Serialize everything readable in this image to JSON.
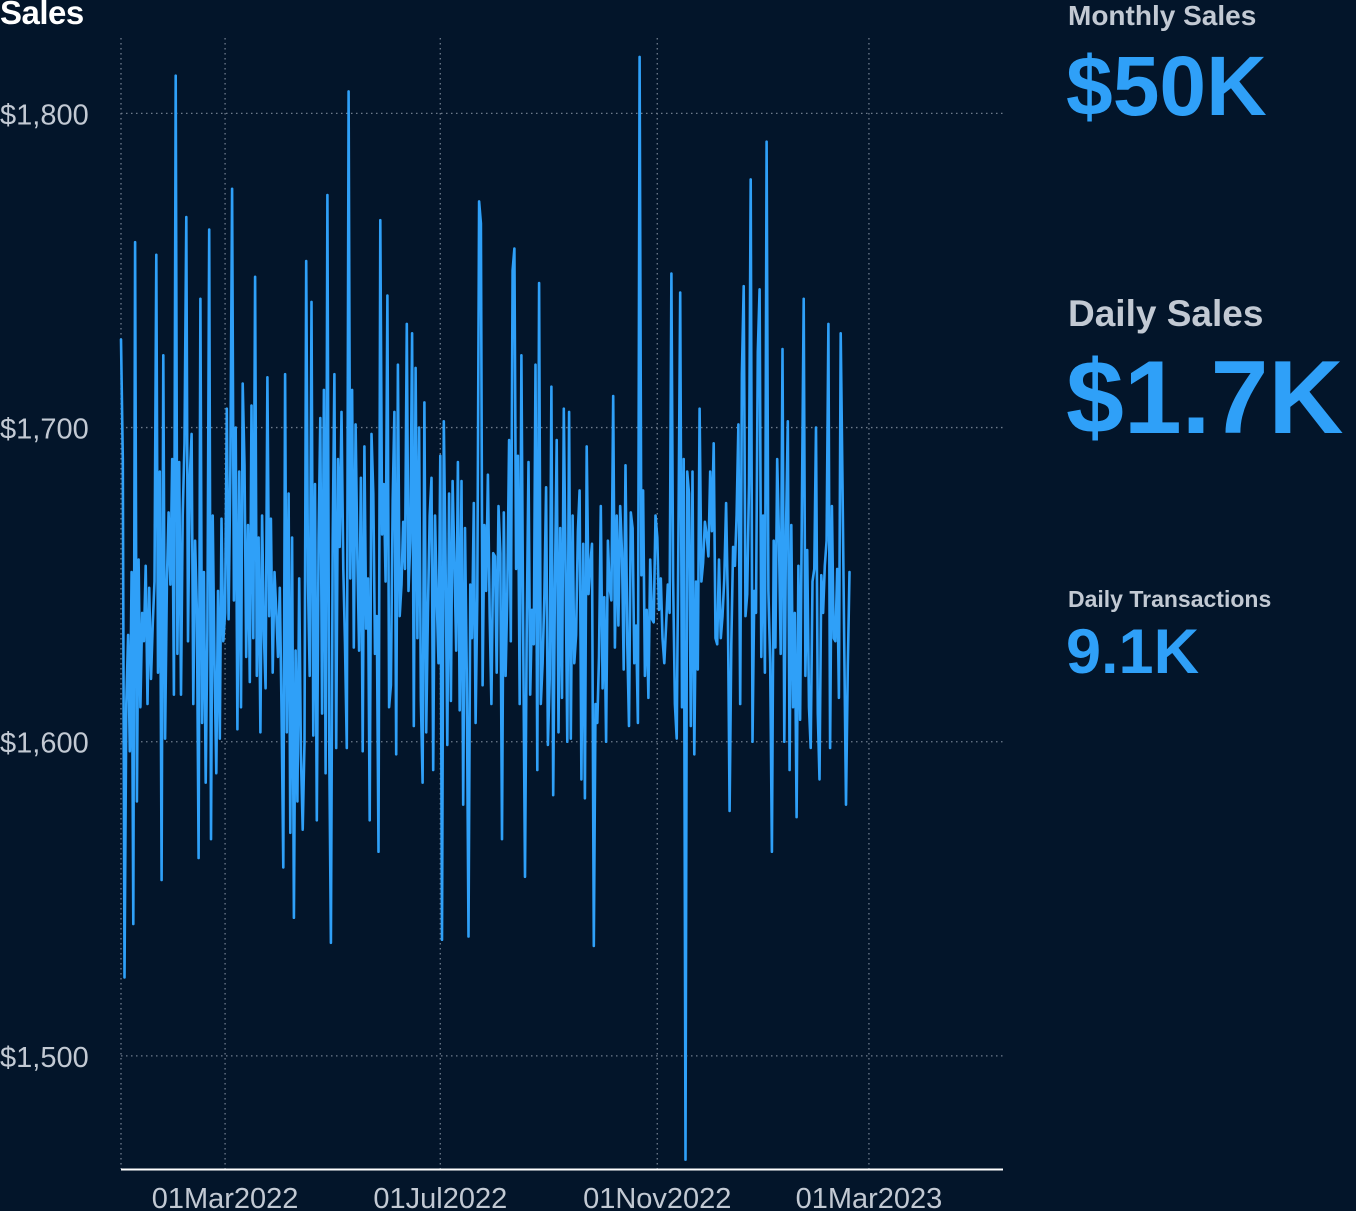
{
  "chart_data": {
    "type": "line",
    "title": "Sales",
    "xlabel": "",
    "ylabel": "",
    "x_ticks": [
      "01Mar2022",
      "01Jul2022",
      "01Nov2022",
      "01Mar2023"
    ],
    "y_ticks": [
      "$1,500",
      "$1,600",
      "$1,700",
      "$1,800"
    ],
    "x_range": [
      "2022-01-01",
      "2023-05-16"
    ],
    "ylim": [
      1464,
      1824
    ],
    "grid": true,
    "colors": {
      "background": "#03152a",
      "line": "#2fa0f8",
      "grid": "#6e7b8c",
      "axis": "#ffffff",
      "tick_text": "#c2c9d3"
    },
    "series": [
      {
        "x_start": "2022-01-01",
        "x_step_days": 1,
        "values": [
          1728,
          1690,
          1525,
          1612,
          1634,
          1597,
          1654,
          1542,
          1759,
          1581,
          1658,
          1611,
          1641,
          1632,
          1656,
          1612,
          1649,
          1620,
          1638,
          1651,
          1755,
          1622,
          1686,
          1556,
          1723,
          1601,
          1651,
          1673,
          1650,
          1690,
          1615,
          1812,
          1628,
          1689,
          1615,
          1672,
          1695,
          1767,
          1632,
          1684,
          1698,
          1612,
          1664,
          1641,
          1563,
          1741,
          1606,
          1654,
          1587,
          1635,
          1763,
          1569,
          1672,
          1625,
          1590,
          1648,
          1601,
          1671,
          1632,
          1641,
          1706,
          1639,
          1688,
          1776,
          1645,
          1700,
          1604,
          1686,
          1611,
          1714,
          1688,
          1627,
          1669,
          1619,
          1707,
          1633,
          1748,
          1621,
          1665,
          1603,
          1672,
          1634,
          1617,
          1716,
          1640,
          1671,
          1622,
          1654,
          1642,
          1627,
          1649,
          1611,
          1560,
          1717,
          1603,
          1679,
          1571,
          1665,
          1544,
          1629,
          1581,
          1652,
          1596,
          1572,
          1600,
          1753,
          1651,
          1621,
          1740,
          1602,
          1682,
          1575,
          1665,
          1703,
          1609,
          1712,
          1590,
          1774,
          1600,
          1536,
          1664,
          1717,
          1598,
          1690,
          1662,
          1705,
          1655,
          1631,
          1598,
          1807,
          1652,
          1712,
          1630,
          1701,
          1658,
          1629,
          1684,
          1597,
          1694,
          1636,
          1652,
          1575,
          1698,
          1679,
          1628,
          1640,
          1565,
          1766,
          1666,
          1682,
          1651,
          1742,
          1611,
          1618,
          1677,
          1705,
          1596,
          1720,
          1640,
          1650,
          1670,
          1655,
          1733,
          1648,
          1664,
          1730,
          1605,
          1719,
          1633,
          1700,
          1613,
          1587,
          1708,
          1603,
          1641,
          1672,
          1684,
          1591,
          1672,
          1645,
          1625,
          1691,
          1537,
          1702,
          1656,
          1599,
          1679,
          1613,
          1683,
          1657,
          1629,
          1689,
          1610,
          1683,
          1580,
          1668,
          1623,
          1538,
          1650,
          1633,
          1676,
          1606,
          1646,
          1772,
          1765,
          1618,
          1669,
          1648,
          1685,
          1640,
          1612,
          1660,
          1659,
          1622,
          1675,
          1660,
          1569,
          1673,
          1621,
          1647,
          1696,
          1632,
          1750,
          1757,
          1655,
          1691,
          1612,
          1723,
          1634,
          1557,
          1635,
          1689,
          1615,
          1642,
          1631,
          1720,
          1591,
          1746,
          1612,
          1625,
          1647,
          1681,
          1599,
          1620,
          1713,
          1583,
          1649,
          1696,
          1603,
          1668,
          1614,
          1706,
          1657,
          1600,
          1705,
          1601,
          1672,
          1625,
          1634,
          1667,
          1680,
          1588,
          1663,
          1582,
          1694,
          1647,
          1656,
          1663,
          1535,
          1612,
          1606,
          1627,
          1675,
          1617,
          1646,
          1600,
          1664,
          1649,
          1645,
          1710,
          1630,
          1672,
          1637,
          1675,
          1660,
          1623,
          1688,
          1631,
          1605,
          1673,
          1668,
          1625,
          1637,
          1606,
          1818,
          1653,
          1680,
          1621,
          1642,
          1614,
          1658,
          1639,
          1638,
          1672,
          1665,
          1642,
          1652,
          1633,
          1625,
          1637,
          1650,
          1641,
          1749,
          1652,
          1612,
          1601,
          1664,
          1743,
          1611,
          1690,
          1467,
          1686,
          1679,
          1605,
          1686,
          1596,
          1651,
          1623,
          1706,
          1651,
          1657,
          1670,
          1666,
          1659,
          1686,
          1667,
          1695,
          1633,
          1631,
          1658,
          1633,
          1640,
          1652,
          1676,
          1645,
          1578,
          1631,
          1662,
          1656,
          1672,
          1701,
          1612,
          1717,
          1745,
          1640,
          1647,
          1682,
          1779,
          1600,
          1648,
          1641,
          1724,
          1744,
          1627,
          1672,
          1622,
          1791,
          1648,
          1625,
          1565,
          1664,
          1630,
          1690,
          1664,
          1628,
          1725,
          1600,
          1667,
          1702,
          1591,
          1669,
          1611,
          1641,
          1576,
          1656,
          1607,
          1675,
          1741,
          1621,
          1661,
          1611,
          1598,
          1651,
          1655,
          1700,
          1609,
          1588,
          1653,
          1641,
          1656,
          1664,
          1733,
          1598,
          1675,
          1633,
          1632,
          1655,
          1614,
          1730,
          1682,
          1632,
          1580,
          1624,
          1654
        ]
      }
    ]
  },
  "kpis": {
    "monthly_sales_label": "Monthly Sales",
    "monthly_sales_value": "$50K",
    "daily_sales_label": "Daily Sales",
    "daily_sales_value": "$1.7K",
    "daily_transactions_label": "Daily Transactions",
    "daily_transactions_value": "9.1K"
  }
}
